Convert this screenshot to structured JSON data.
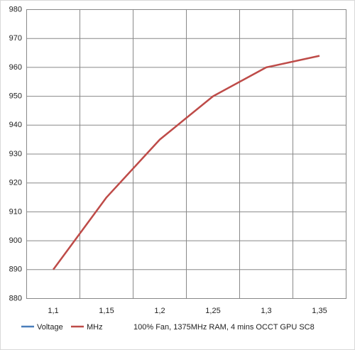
{
  "chart_data": {
    "type": "line",
    "categories": [
      "1,1",
      "1,15",
      "1,2",
      "1,25",
      "1,3",
      "1,35"
    ],
    "series": [
      {
        "name": "Voltage",
        "color": "#4a7ebb",
        "values": [
          null,
          null,
          null,
          null,
          null,
          null
        ]
      },
      {
        "name": "MHz",
        "color": "#be4b48",
        "values": [
          890,
          915,
          935,
          950,
          960,
          964
        ]
      }
    ],
    "ylim": [
      880,
      980
    ],
    "yticks": [
      880,
      890,
      900,
      910,
      920,
      930,
      940,
      950,
      960,
      970,
      980
    ],
    "grid": true,
    "annotation": "100% Fan, 1375MHz RAM, 4 mins OCCT GPU SC8"
  }
}
